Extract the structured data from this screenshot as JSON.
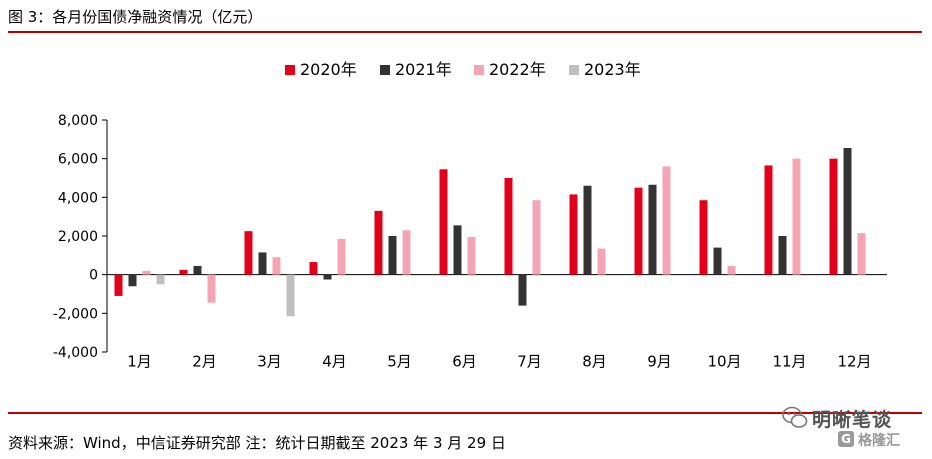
{
  "header": {
    "title": "图 3：各月份国债净融资情况（亿元）"
  },
  "footer": {
    "source": "资料来源：Wind，中信证券研究部 注：统计日期截至 2023 年 3 月 29 日"
  },
  "watermark": {
    "name": "明晰笔谈",
    "site": "格隆汇",
    "logo_icon": "wechat-bubble-icon",
    "site_icon": "g-logo-icon"
  },
  "colors": {
    "accent": "#c00000"
  },
  "chart_data": {
    "type": "bar",
    "title": "",
    "xlabel": "",
    "ylabel": "",
    "ylim": [
      -4000,
      8000
    ],
    "yticks": [
      8000,
      6000,
      4000,
      2000,
      0,
      -2000,
      -4000
    ],
    "ytick_labels": [
      "8,000",
      "6,000",
      "4,000",
      "2,000",
      "0",
      "-2,000",
      "-4,000"
    ],
    "legend_position": "top-center",
    "grid": false,
    "categories": [
      "1月",
      "2月",
      "3月",
      "4月",
      "5月",
      "6月",
      "7月",
      "8月",
      "9月",
      "10月",
      "11月",
      "12月"
    ],
    "series": [
      {
        "name": "2020年",
        "color": "#e2001a",
        "values": [
          -1100,
          250,
          2250,
          650,
          3300,
          5450,
          5000,
          4150,
          4500,
          3850,
          5650,
          6000
        ]
      },
      {
        "name": "2021年",
        "color": "#333333",
        "values": [
          -600,
          450,
          1150,
          -250,
          2000,
          2550,
          -1600,
          4600,
          4650,
          1400,
          2000,
          6550
        ]
      },
      {
        "name": "2022年",
        "color": "#f4a5b4",
        "values": [
          200,
          -1450,
          900,
          1850,
          2300,
          1950,
          3850,
          1350,
          5600,
          450,
          6000,
          2150
        ]
      },
      {
        "name": "2023年",
        "color": "#bfbfbf",
        "values": [
          -500,
          null,
          -2150,
          null,
          null,
          null,
          null,
          null,
          null,
          null,
          null,
          null
        ]
      }
    ]
  }
}
